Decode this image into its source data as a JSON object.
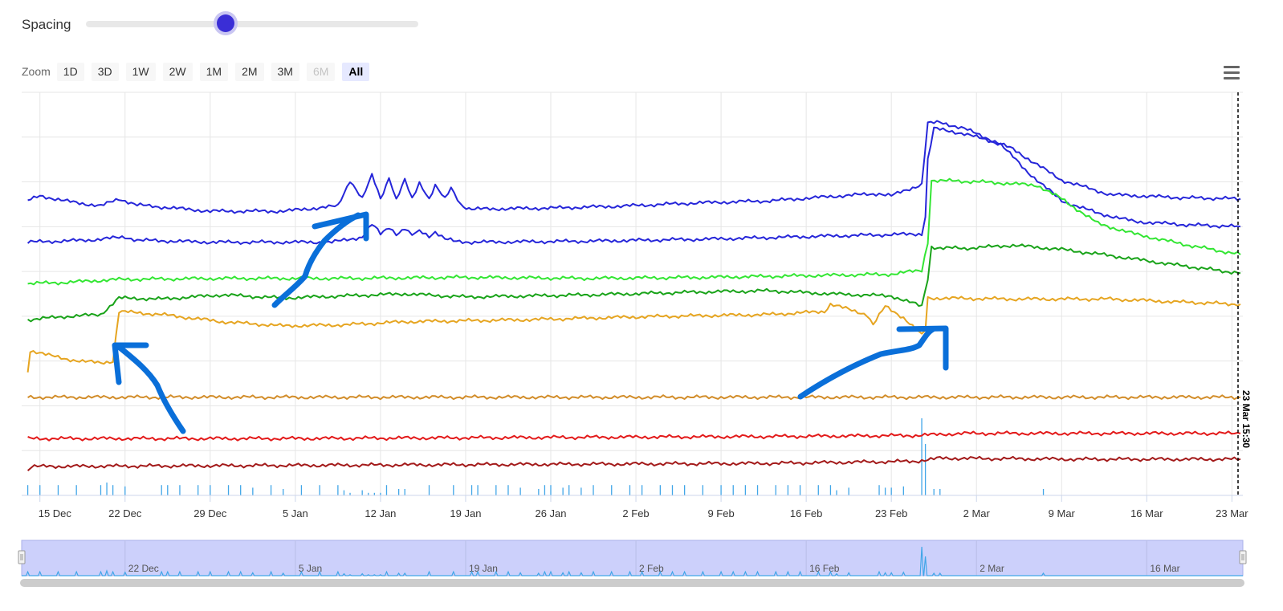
{
  "controls": {
    "spacing_label": "Spacing",
    "spacing_value": 0.42,
    "zoom_label": "Zoom",
    "zoom_buttons": [
      {
        "label": "1D",
        "state": "normal"
      },
      {
        "label": "3D",
        "state": "normal"
      },
      {
        "label": "1W",
        "state": "normal"
      },
      {
        "label": "2W",
        "state": "normal"
      },
      {
        "label": "1M",
        "state": "normal"
      },
      {
        "label": "2M",
        "state": "normal"
      },
      {
        "label": "3M",
        "state": "normal"
      },
      {
        "label": "6M",
        "state": "disabled"
      },
      {
        "label": "All",
        "state": "active"
      }
    ],
    "menu_icon": "hamburger-menu-icon"
  },
  "chart_data": {
    "type": "line",
    "title": "",
    "xlabel": "",
    "ylabel": "",
    "grid": true,
    "x_range_days": [
      -1.5,
      98.9
    ],
    "x_ticks": [
      "15 Dec",
      "22 Dec",
      "29 Dec",
      "5 Jan",
      "12 Jan",
      "19 Jan",
      "26 Jan",
      "2 Feb",
      "9 Feb",
      "16 Feb",
      "23 Feb",
      "2 Mar",
      "9 Mar",
      "16 Mar",
      "23 Mar"
    ],
    "navigator_labels": [
      "22 Dec",
      "5 Jan",
      "19 Jan",
      "2 Feb",
      "16 Feb",
      "2 Mar",
      "16 Mar"
    ],
    "crosshair_label": "23 Mar 15:30",
    "colors": {
      "blue": "#2626d9",
      "bright_green": "#33e633",
      "green": "#19a319",
      "orange": "#e6a521",
      "tan": "#d28d2a",
      "red": "#e31a1a",
      "dark_red": "#a31a1a",
      "light_blue": "#41a6e8",
      "annotation": "#0a6fd9"
    },
    "series": [
      {
        "color": "blue",
        "points": [
          [
            -1,
            84
          ],
          [
            0,
            84.5
          ],
          [
            2,
            84
          ],
          [
            5,
            83.5
          ],
          [
            6.5,
            84.2
          ],
          [
            8,
            83.6
          ],
          [
            14,
            83
          ],
          [
            20,
            83
          ],
          [
            24.5,
            83.5
          ],
          [
            25.5,
            86
          ],
          [
            26.5,
            84.2
          ],
          [
            27.3,
            86.5
          ],
          [
            28,
            84.2
          ],
          [
            28.7,
            86.2
          ],
          [
            29.3,
            84.2
          ],
          [
            30,
            86
          ],
          [
            30.6,
            84.2
          ],
          [
            31.2,
            85.8
          ],
          [
            32,
            84.2
          ],
          [
            32.5,
            85.5
          ],
          [
            33.3,
            84.2
          ],
          [
            33.8,
            85.2
          ],
          [
            34.6,
            83.5
          ],
          [
            35.5,
            83.2
          ],
          [
            42,
            83.3
          ],
          [
            48,
            83.5
          ],
          [
            54,
            83.8
          ],
          [
            60,
            84
          ],
          [
            66,
            84.5
          ],
          [
            69,
            84.7
          ],
          [
            70,
            84.5
          ],
          [
            72.5,
            85.6
          ],
          [
            73,
            91.5
          ],
          [
            74,
            91.6
          ],
          [
            76,
            91
          ],
          [
            78,
            90
          ],
          [
            80,
            89
          ],
          [
            84,
            86
          ],
          [
            88,
            84.6
          ],
          [
            94,
            84.3
          ],
          [
            98.7,
            84.2
          ]
        ]
      },
      {
        "color": "blue",
        "points": [
          [
            -1,
            80
          ],
          [
            4,
            80.2
          ],
          [
            7,
            80.5
          ],
          [
            8,
            80.2
          ],
          [
            14,
            80
          ],
          [
            24,
            80
          ],
          [
            26.5,
            80.5
          ],
          [
            27.3,
            81.8
          ],
          [
            28,
            80.8
          ],
          [
            28.7,
            81.5
          ],
          [
            29.3,
            80.8
          ],
          [
            30,
            81.3
          ],
          [
            30.6,
            80.8
          ],
          [
            31.2,
            81.2
          ],
          [
            32,
            80.6
          ],
          [
            32.5,
            81
          ],
          [
            33.3,
            80.4
          ],
          [
            34,
            80.1
          ],
          [
            35.5,
            80
          ],
          [
            45,
            80.1
          ],
          [
            55,
            80.3
          ],
          [
            65,
            80.6
          ],
          [
            72.5,
            80.8
          ],
          [
            72.8,
            82.5
          ],
          [
            73,
            88
          ],
          [
            73.5,
            91
          ],
          [
            76,
            90.5
          ],
          [
            79,
            89.5
          ],
          [
            81,
            87
          ],
          [
            84,
            84
          ],
          [
            87,
            82.8
          ],
          [
            90,
            82
          ],
          [
            94,
            81.7
          ],
          [
            98.7,
            81.5
          ]
        ]
      },
      {
        "color": "bright_green",
        "points": [
          [
            -1,
            76
          ],
          [
            2,
            76.1
          ],
          [
            5,
            76.3
          ],
          [
            6.5,
            76.4
          ],
          [
            15,
            76.5
          ],
          [
            25,
            76.5
          ],
          [
            35,
            76.6
          ],
          [
            45,
            76.5
          ],
          [
            55,
            76.6
          ],
          [
            65,
            76.8
          ],
          [
            70,
            76.9
          ],
          [
            72.5,
            77.3
          ],
          [
            73,
            80
          ],
          [
            73.3,
            86
          ],
          [
            78,
            85.8
          ],
          [
            82,
            85.5
          ],
          [
            84,
            84.2
          ],
          [
            87,
            81.8
          ],
          [
            90,
            80.8
          ],
          [
            94,
            79.8
          ],
          [
            98.7,
            78.8
          ]
        ]
      },
      {
        "color": "green",
        "points": [
          [
            -1,
            72.5
          ],
          [
            2,
            72.8
          ],
          [
            5,
            73
          ],
          [
            6.5,
            74.6
          ],
          [
            10,
            74.5
          ],
          [
            15,
            74.9
          ],
          [
            20,
            74.6
          ],
          [
            25,
            74.8
          ],
          [
            30,
            75
          ],
          [
            35,
            74.7
          ],
          [
            45,
            74.9
          ],
          [
            55,
            75.2
          ],
          [
            60,
            75.3
          ],
          [
            65,
            75
          ],
          [
            70,
            74.8
          ],
          [
            72.5,
            73.8
          ],
          [
            73,
            76.5
          ],
          [
            73.3,
            79.5
          ],
          [
            76,
            79.4
          ],
          [
            80,
            79.7
          ],
          [
            84,
            79.3
          ],
          [
            88,
            78.7
          ],
          [
            94,
            77.7
          ],
          [
            98.7,
            77
          ]
        ]
      },
      {
        "color": "orange",
        "points": [
          [
            -1,
            67.5
          ],
          [
            -0.8,
            69.5
          ],
          [
            2,
            68.7
          ],
          [
            5,
            68.3
          ],
          [
            6,
            68.5
          ],
          [
            6.5,
            73.3
          ],
          [
            10,
            73
          ],
          [
            15,
            72.3
          ],
          [
            20,
            71.9
          ],
          [
            25,
            72
          ],
          [
            30,
            72.3
          ],
          [
            35,
            72.4
          ],
          [
            40,
            72.5
          ],
          [
            50,
            72.8
          ],
          [
            60,
            73
          ],
          [
            64.5,
            73.3
          ],
          [
            65,
            74
          ],
          [
            68,
            73
          ],
          [
            68.5,
            72
          ],
          [
            69.5,
            73.8
          ],
          [
            71,
            72.7
          ],
          [
            72.5,
            71
          ],
          [
            72.8,
            71.5
          ],
          [
            73,
            74.6
          ],
          [
            80,
            74.5
          ],
          [
            88,
            74.5
          ],
          [
            94,
            74.2
          ],
          [
            98.7,
            74
          ]
        ]
      },
      {
        "color": "tan",
        "points": [
          [
            -1,
            65
          ],
          [
            20,
            65
          ],
          [
            40,
            65
          ],
          [
            60,
            65
          ],
          [
            80,
            65
          ],
          [
            98.7,
            65
          ]
        ]
      },
      {
        "color": "red",
        "points": [
          [
            -1,
            61
          ],
          [
            20,
            61
          ],
          [
            40,
            61.1
          ],
          [
            60,
            61.2
          ],
          [
            72,
            61.3
          ],
          [
            76,
            61.5
          ],
          [
            90,
            61.5
          ],
          [
            98.7,
            61.5
          ]
        ]
      },
      {
        "color": "dark_red",
        "points": [
          [
            -1,
            57.8
          ],
          [
            -0.7,
            58.3
          ],
          [
            20,
            58.4
          ],
          [
            40,
            58.5
          ],
          [
            60,
            58.6
          ],
          [
            72,
            58.8
          ],
          [
            74,
            59.1
          ],
          [
            85,
            59
          ],
          [
            98.7,
            59
          ]
        ]
      }
    ],
    "events": {
      "color": "light_blue",
      "days": [
        -1,
        0,
        1.5,
        3,
        5,
        5.5,
        6,
        7,
        10,
        10.5,
        11.5,
        13,
        14,
        15.5,
        16.5,
        17.5,
        19,
        20,
        21.5,
        23,
        24.5,
        25,
        25.5,
        26.5,
        27,
        27.5,
        28,
        28.5,
        29.5,
        30,
        32,
        34,
        35.5,
        36,
        37.5,
        38.5,
        39.5,
        41,
        41.5,
        42,
        43,
        43.5,
        44.5,
        45.5,
        47,
        48.5,
        49.5,
        51,
        52,
        53,
        54.5,
        56,
        57,
        58,
        59,
        60.5,
        61.5,
        62.5,
        64,
        65,
        65.5,
        66.5,
        69,
        69.5,
        70,
        71,
        72.5,
        72.8,
        73.5,
        74,
        82.5
      ],
      "values": [
        0.8,
        0.8,
        0.8,
        0.8,
        0.8,
        1.0,
        0.8,
        0.7,
        0.8,
        0.8,
        0.8,
        0.8,
        0.8,
        0.8,
        0.8,
        0.6,
        0.8,
        0.5,
        0.8,
        0.8,
        0.8,
        0.4,
        0.2,
        0.4,
        0.2,
        0.2,
        0.2,
        0.8,
        0.5,
        0.5,
        0.8,
        0.8,
        0.8,
        0.8,
        0.8,
        0.8,
        0.6,
        0.5,
        0.8,
        0.8,
        0.6,
        0.8,
        0.6,
        0.8,
        0.8,
        0.8,
        0.8,
        0.8,
        0.8,
        0.8,
        0.8,
        0.8,
        0.8,
        0.8,
        0.8,
        0.8,
        0.8,
        0.8,
        0.8,
        0.8,
        0.4,
        0.6,
        0.8,
        0.6,
        0.6,
        0.7,
        6.0,
        4.0,
        0.5,
        0.5,
        0.5
      ]
    },
    "y_range": [
      55.5,
      94.5
    ]
  }
}
